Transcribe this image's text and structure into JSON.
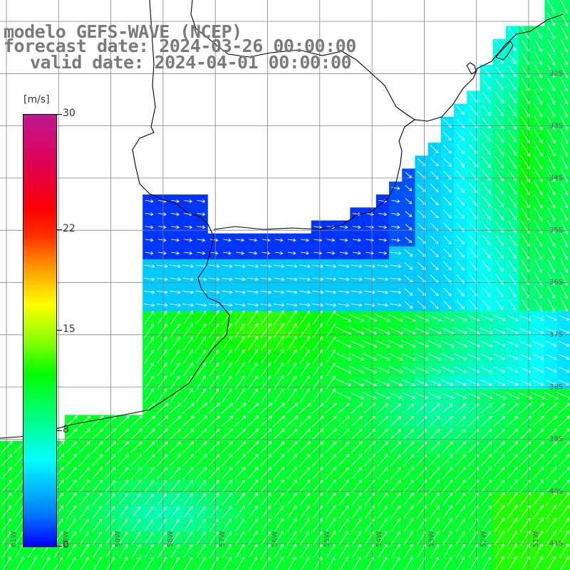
{
  "header": {
    "line1": "modelo GEFS-WAVE (NCEP)",
    "line2": "forecast date: 2024-03-26 00:00:00",
    "line3": "valid date: 2024-04-01 00:00:00"
  },
  "colorbar": {
    "unit": "[m/s]",
    "ticks": [
      "30",
      "22",
      "15",
      "8",
      "0"
    ],
    "tick_values": [
      30,
      22,
      15,
      8,
      0
    ],
    "range": [
      0,
      30
    ]
  },
  "map": {
    "grid_lines": "on",
    "lon_labels": [
      "61W",
      "60W",
      "59W",
      "58W",
      "57W",
      "56W",
      "55W",
      "54W",
      "53W",
      "52W",
      "51W"
    ],
    "lat_labels": [
      "32S",
      "33S",
      "34S",
      "35S",
      "36S",
      "37S",
      "38S",
      "39S",
      "40S",
      "41S"
    ],
    "colors": {
      "land": "#ffffff",
      "grid": "#808080",
      "coast": "#000000",
      "arrow": "#ffffff"
    }
  }
}
